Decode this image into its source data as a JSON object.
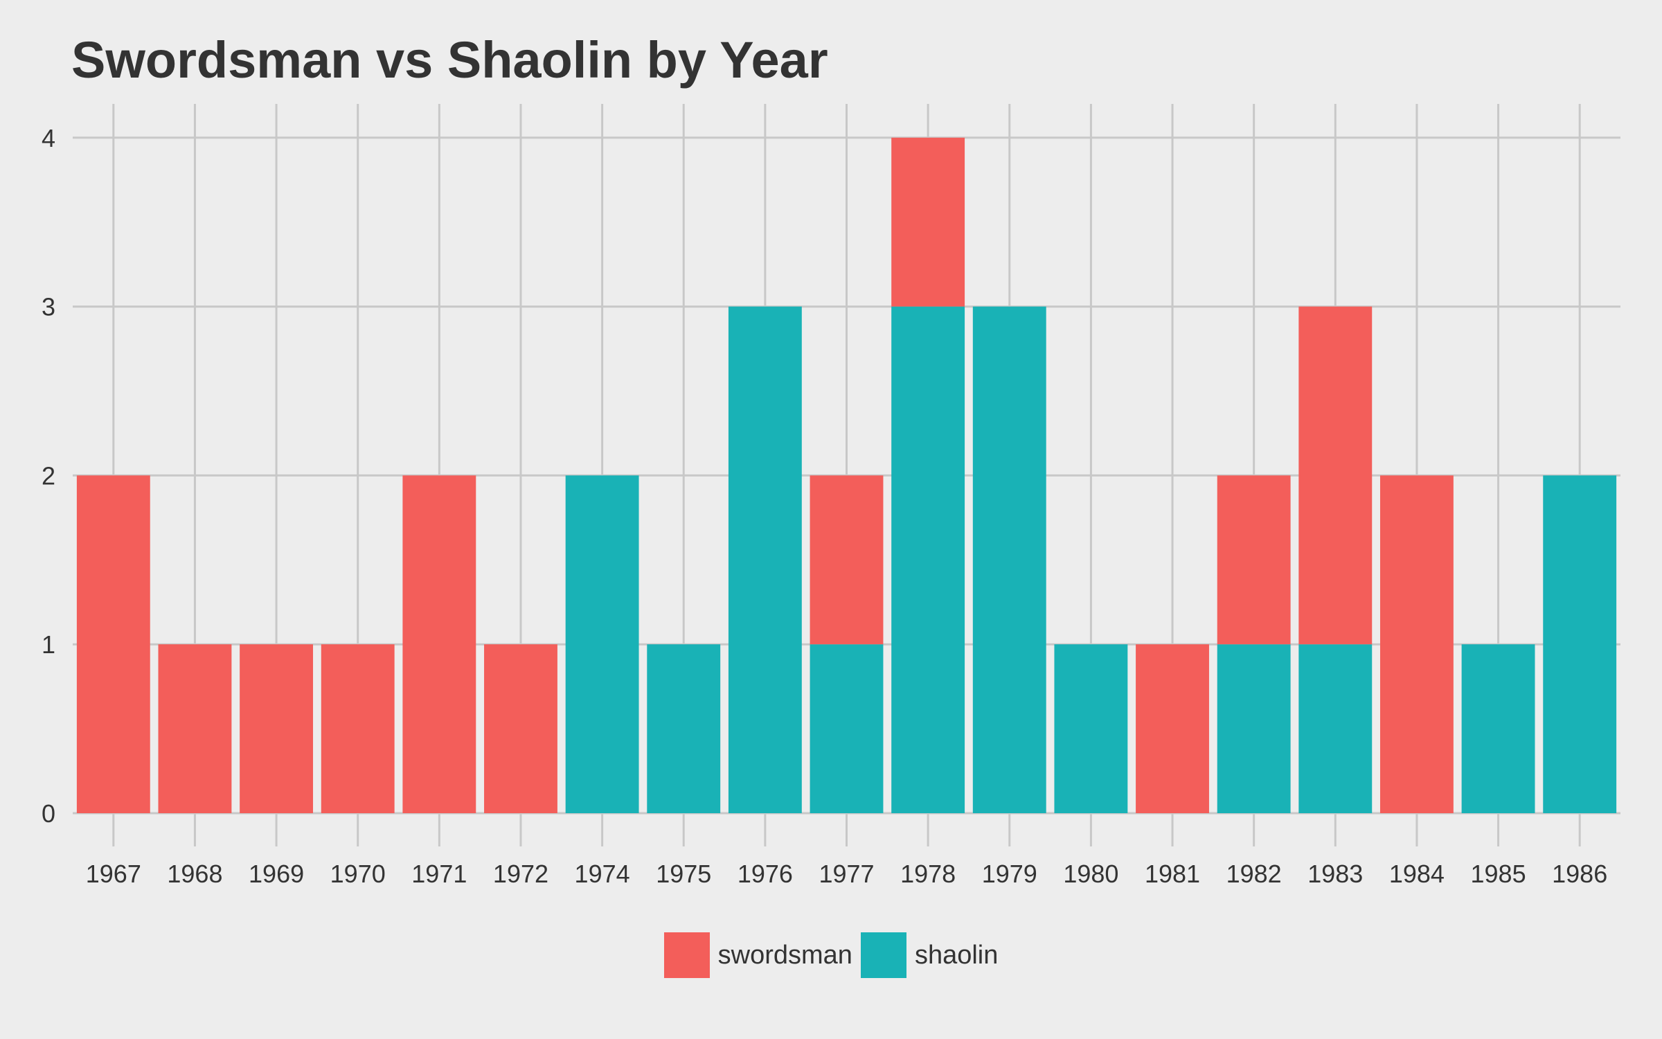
{
  "chart_data": {
    "type": "bar",
    "stacked": true,
    "title": "Swordsman vs Shaolin by Year",
    "xlabel": "",
    "ylabel": "",
    "categories": [
      "1967",
      "1968",
      "1969",
      "1970",
      "1971",
      "1972",
      "1974",
      "1975",
      "1976",
      "1977",
      "1978",
      "1979",
      "1980",
      "1981",
      "1982",
      "1983",
      "1984",
      "1985",
      "1986"
    ],
    "series": [
      {
        "name": "shaolin",
        "color": "#19b2b6",
        "values": [
          0,
          0,
          0,
          0,
          0,
          0,
          2,
          1,
          3,
          1,
          3,
          3,
          1,
          0,
          1,
          1,
          0,
          1,
          2
        ]
      },
      {
        "name": "swordsman",
        "color": "#f35e5a",
        "values": [
          2,
          1,
          1,
          1,
          2,
          1,
          0,
          0,
          0,
          1,
          1,
          0,
          0,
          1,
          1,
          2,
          2,
          0,
          0
        ]
      }
    ],
    "yticks": [
      0,
      1,
      2,
      3,
      4
    ],
    "ylim": [
      0,
      4.2
    ],
    "grid": true,
    "legend": {
      "position": "bottom",
      "entries": [
        "swordsman",
        "shaolin"
      ]
    }
  }
}
